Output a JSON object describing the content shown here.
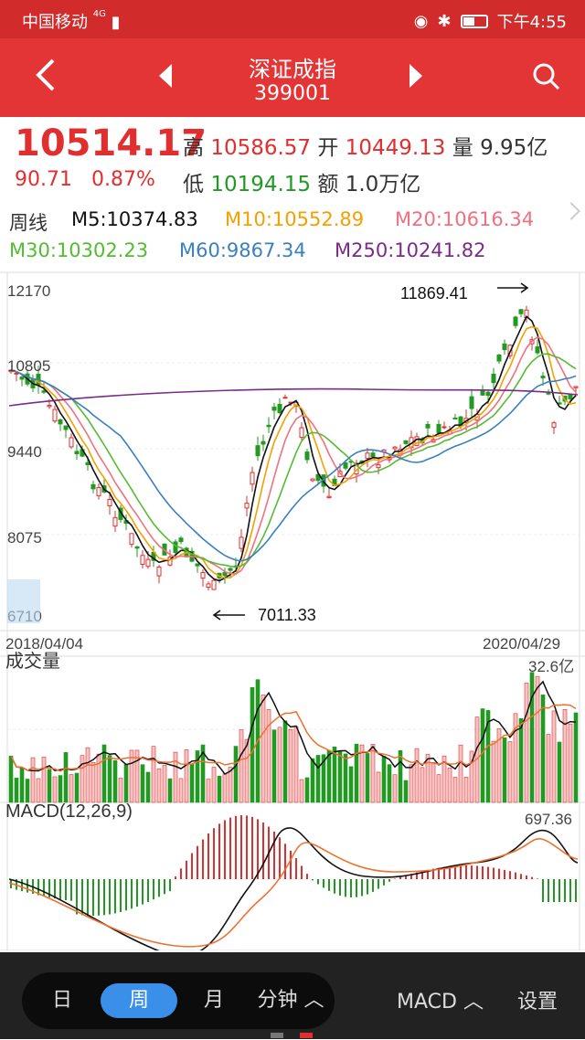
{
  "status": {
    "carrier": "中国移动",
    "network": "4G",
    "time": "下午4:55"
  },
  "header": {
    "title": "深证成指",
    "code": "399001"
  },
  "quote": {
    "price": "10514.17",
    "change": "90.71",
    "change_pct": "0.87%",
    "high_label": "高",
    "high": "10586.57",
    "open_label": "开",
    "open": "10449.13",
    "vol_label": "量",
    "vol": "9.95亿",
    "low_label": "低",
    "low": "10194.15",
    "amt_label": "额",
    "amt": "1.0万亿"
  },
  "ma": {
    "period": "周线",
    "m5": "M5:10374.83",
    "m10": "M10:10552.89",
    "m20": "M20:10616.34",
    "m30": "M30:10302.23",
    "m60": "M60:9867.34",
    "m250": "M250:10241.82"
  },
  "chart": {
    "y_ticks": [
      "12170",
      "10805",
      "9440",
      "8075",
      "6710"
    ],
    "high_label": "11869.41",
    "low_label": "7011.33",
    "date_start": "2018/04/04",
    "date_end": "2020/04/29",
    "vol_title": "成交量",
    "vol_max": "32.6亿",
    "macd_title": "MACD(12,26,9)",
    "macd_max": "697.36"
  },
  "colors": {
    "up": "#e12e2e",
    "down": "#229922",
    "m5": "#111111",
    "m10": "#f5a000",
    "m20": "#f07080",
    "m30": "#55bb33",
    "m60": "#3a80c0",
    "m250": "#7a2a8a"
  },
  "tabs": {
    "day": "日",
    "week": "周",
    "month": "月",
    "minute": "分钟"
  },
  "bottom": {
    "macd": "MACD",
    "settings": "设置"
  }
}
